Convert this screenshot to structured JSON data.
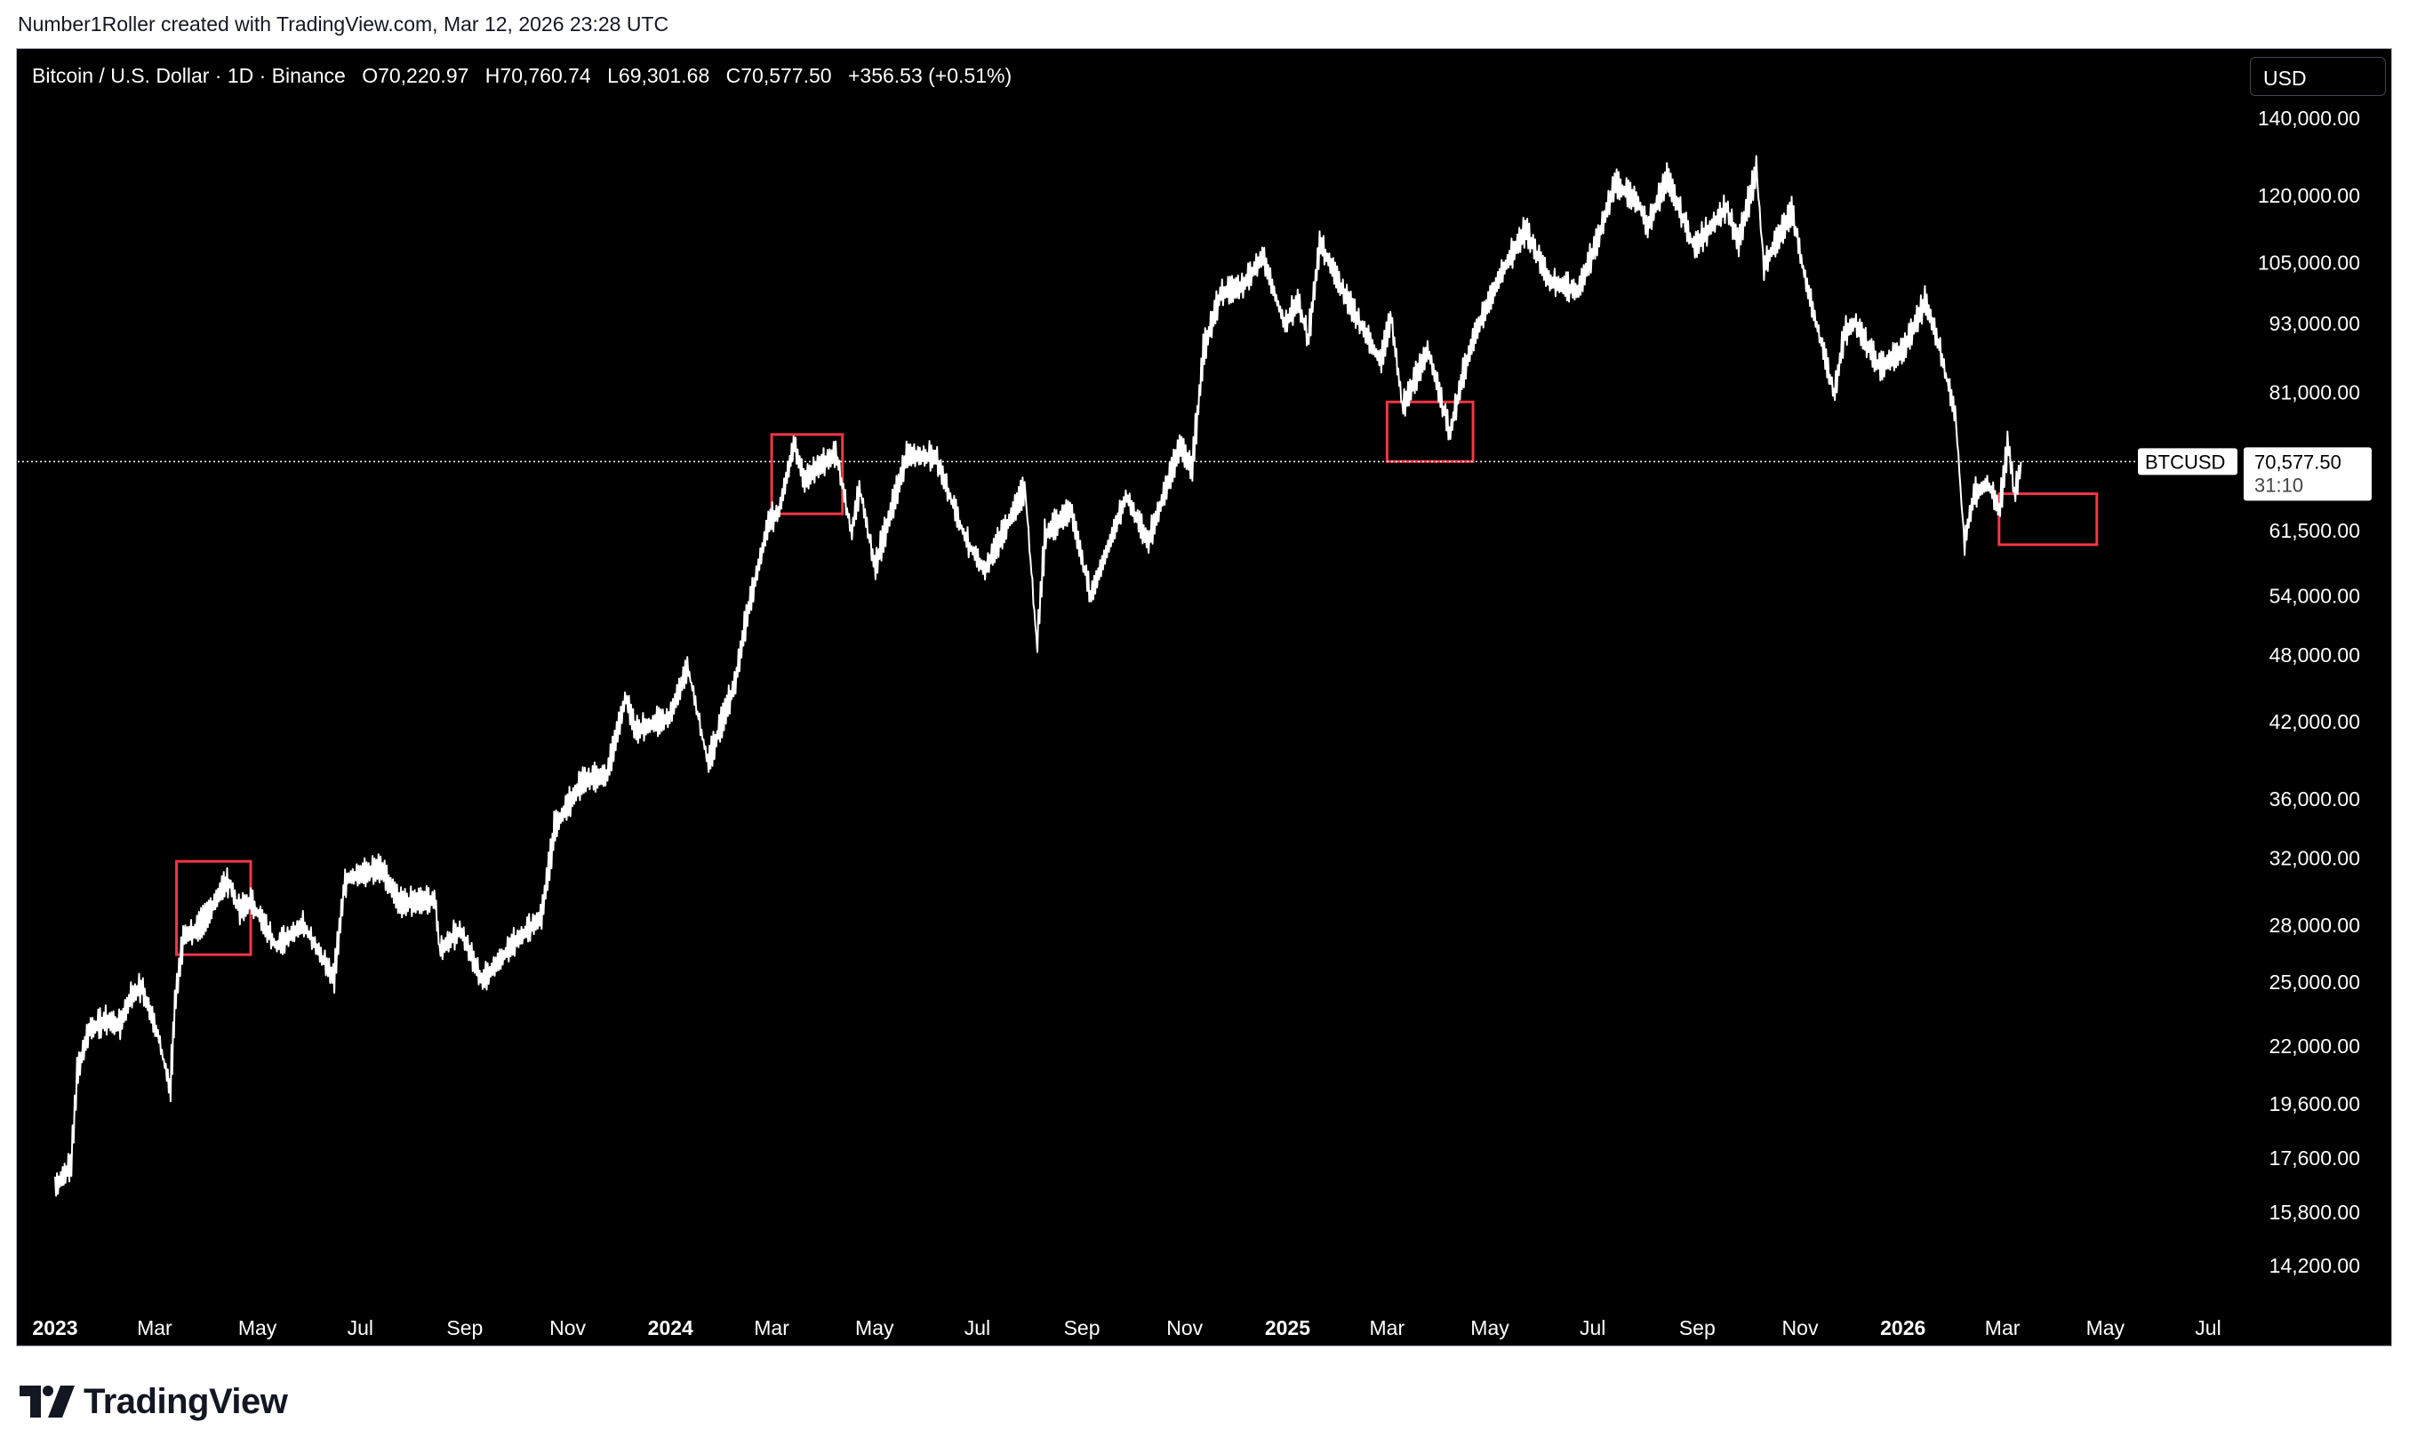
{
  "header": {
    "credit": "Number1Roller created with TradingView.com, Mar 12, 2026 23:28 UTC"
  },
  "legend": {
    "symbol": "Bitcoin / U.S. Dollar · 1D · Binance",
    "open": "O70,220.97",
    "high": "H70,760.74",
    "low": "L69,301.68",
    "close": "C70,577.50",
    "change": "+356.53 (+0.51%)"
  },
  "currency_button": "USD",
  "price_tag": {
    "ticker": "BTCUSD",
    "price": "70,577.50",
    "countdown": "31:10"
  },
  "brand": {
    "name": "TradingView"
  },
  "colors": {
    "background": "#000000",
    "price_line": "#ffffff",
    "highlight_box": "#f23645",
    "axis_text": "#ffffff"
  },
  "chart_data": {
    "type": "line",
    "title": "Bitcoin / U.S. Dollar · 1D · Binance",
    "scale": "log",
    "grid": false,
    "ylim": [
      12500,
      150000
    ],
    "xlim": [
      "2023-01-01",
      "2026-08-01"
    ],
    "y_ticks": [
      {
        "value": 140000,
        "label": "140,000.00"
      },
      {
        "value": 120000,
        "label": "120,000.00"
      },
      {
        "value": 105000,
        "label": "105,000.00"
      },
      {
        "value": 93000,
        "label": "93,000.00"
      },
      {
        "value": 81000,
        "label": "81,000.00"
      },
      {
        "value": 61500,
        "label": "61,500.00"
      },
      {
        "value": 54000,
        "label": "54,000.00"
      },
      {
        "value": 48000,
        "label": "48,000.00"
      },
      {
        "value": 42000,
        "label": "42,000.00"
      },
      {
        "value": 36000,
        "label": "36,000.00"
      },
      {
        "value": 32000,
        "label": "32,000.00"
      },
      {
        "value": 28000,
        "label": "28,000.00"
      },
      {
        "value": 25000,
        "label": "25,000.00"
      },
      {
        "value": 22000,
        "label": "22,000.00"
      },
      {
        "value": 19600,
        "label": "19,600.00"
      },
      {
        "value": 17600,
        "label": "17,600.00"
      },
      {
        "value": 15800,
        "label": "15,800.00"
      },
      {
        "value": 14200,
        "label": "14,200.00"
      }
    ],
    "x_ticks": [
      {
        "date": "2023-01-01",
        "label": "2023",
        "bold": true
      },
      {
        "date": "2023-03-01",
        "label": "Mar",
        "bold": false
      },
      {
        "date": "2023-05-01",
        "label": "May",
        "bold": false
      },
      {
        "date": "2023-07-01",
        "label": "Jul",
        "bold": false
      },
      {
        "date": "2023-09-01",
        "label": "Sep",
        "bold": false
      },
      {
        "date": "2023-11-01",
        "label": "Nov",
        "bold": false
      },
      {
        "date": "2024-01-01",
        "label": "2024",
        "bold": true
      },
      {
        "date": "2024-03-01",
        "label": "Mar",
        "bold": false
      },
      {
        "date": "2024-05-01",
        "label": "May",
        "bold": false
      },
      {
        "date": "2024-07-01",
        "label": "Jul",
        "bold": false
      },
      {
        "date": "2024-09-01",
        "label": "Sep",
        "bold": false
      },
      {
        "date": "2024-11-01",
        "label": "Nov",
        "bold": false
      },
      {
        "date": "2025-01-01",
        "label": "2025",
        "bold": true
      },
      {
        "date": "2025-03-01",
        "label": "Mar",
        "bold": false
      },
      {
        "date": "2025-05-01",
        "label": "May",
        "bold": false
      },
      {
        "date": "2025-07-01",
        "label": "Jul",
        "bold": false
      },
      {
        "date": "2025-09-01",
        "label": "Sep",
        "bold": false
      },
      {
        "date": "2025-11-01",
        "label": "Nov",
        "bold": false
      },
      {
        "date": "2026-01-01",
        "label": "2026",
        "bold": true
      },
      {
        "date": "2026-03-01",
        "label": "Mar",
        "bold": false
      },
      {
        "date": "2026-05-01",
        "label": "May",
        "bold": false
      },
      {
        "date": "2026-07-01",
        "label": "Jul",
        "bold": false
      }
    ],
    "series": [
      {
        "points": [
          [
            "2023-01-01",
            16600
          ],
          [
            "2023-01-10",
            17300
          ],
          [
            "2023-01-14",
            20900
          ],
          [
            "2023-01-21",
            22700
          ],
          [
            "2023-01-31",
            23100
          ],
          [
            "2023-02-08",
            22900
          ],
          [
            "2023-02-15",
            24300
          ],
          [
            "2023-02-21",
            24700
          ],
          [
            "2023-03-03",
            22400
          ],
          [
            "2023-03-10",
            20100
          ],
          [
            "2023-03-13",
            24100
          ],
          [
            "2023-03-18",
            27400
          ],
          [
            "2023-03-25",
            27600
          ],
          [
            "2023-04-01",
            28500
          ],
          [
            "2023-04-11",
            30300
          ],
          [
            "2023-04-14",
            30400
          ],
          [
            "2023-04-20",
            28800
          ],
          [
            "2023-04-27",
            29300
          ],
          [
            "2023-05-12",
            26800
          ],
          [
            "2023-05-28",
            28000
          ],
          [
            "2023-06-10",
            25900
          ],
          [
            "2023-06-15",
            25100
          ],
          [
            "2023-06-21",
            30000
          ],
          [
            "2023-06-23",
            30700
          ],
          [
            "2023-07-13",
            31300
          ],
          [
            "2023-07-24",
            29200
          ],
          [
            "2023-08-14",
            29400
          ],
          [
            "2023-08-17",
            26600
          ],
          [
            "2023-08-29",
            27700
          ],
          [
            "2023-09-11",
            25000
          ],
          [
            "2023-09-30",
            27000
          ],
          [
            "2023-10-16",
            28400
          ],
          [
            "2023-10-23",
            33000
          ],
          [
            "2023-10-24",
            34000
          ],
          [
            "2023-11-10",
            37300
          ],
          [
            "2023-11-24",
            37700
          ],
          [
            "2023-12-05",
            44000
          ],
          [
            "2023-12-11",
            41200
          ],
          [
            "2023-12-31",
            42300
          ],
          [
            "2024-01-11",
            46800
          ],
          [
            "2024-01-23",
            38600
          ],
          [
            "2024-02-08",
            45300
          ],
          [
            "2024-02-15",
            51800
          ],
          [
            "2024-02-28",
            62500
          ],
          [
            "2024-03-05",
            63800
          ],
          [
            "2024-03-14",
            73000
          ],
          [
            "2024-03-20",
            67800
          ],
          [
            "2024-03-27",
            69500
          ],
          [
            "2024-04-08",
            71600
          ],
          [
            "2024-04-17",
            61200
          ],
          [
            "2024-04-22",
            66800
          ],
          [
            "2024-05-01",
            57000
          ],
          [
            "2024-05-20",
            71400
          ],
          [
            "2024-06-06",
            71100
          ],
          [
            "2024-06-24",
            60300
          ],
          [
            "2024-07-05",
            56700
          ],
          [
            "2024-07-29",
            66800
          ],
          [
            "2024-08-05",
            49000
          ],
          [
            "2024-08-10",
            60900
          ],
          [
            "2024-08-25",
            64000
          ],
          [
            "2024-09-06",
            53900
          ],
          [
            "2024-09-27",
            65800
          ],
          [
            "2024-10-10",
            60000
          ],
          [
            "2024-10-29",
            72700
          ],
          [
            "2024-11-05",
            69400
          ],
          [
            "2024-11-12",
            88000
          ],
          [
            "2024-11-22",
            98500
          ],
          [
            "2024-12-05",
            100000
          ],
          [
            "2024-12-17",
            106100
          ],
          [
            "2024-12-30",
            92600
          ],
          [
            "2025-01-07",
            97000
          ],
          [
            "2025-01-13",
            90000
          ],
          [
            "2025-01-20",
            109000
          ],
          [
            "2025-02-04",
            98000
          ],
          [
            "2025-02-25",
            86000
          ],
          [
            "2025-03-03",
            94000
          ],
          [
            "2025-03-10",
            78500
          ],
          [
            "2025-03-25",
            88000
          ],
          [
            "2025-04-07",
            74600
          ],
          [
            "2025-04-15",
            84000
          ],
          [
            "2025-04-22",
            91000
          ],
          [
            "2025-05-08",
            103000
          ],
          [
            "2025-05-22",
            111800
          ],
          [
            "2025-06-05",
            101000
          ],
          [
            "2025-06-22",
            99000
          ],
          [
            "2025-07-03",
            109000
          ],
          [
            "2025-07-14",
            122800
          ],
          [
            "2025-07-28",
            118000
          ],
          [
            "2025-08-02",
            112500
          ],
          [
            "2025-08-14",
            124000
          ],
          [
            "2025-08-30",
            108000
          ],
          [
            "2025-09-18",
            117000
          ],
          [
            "2025-09-25",
            109000
          ],
          [
            "2025-10-06",
            126000
          ],
          [
            "2025-10-10",
            104000
          ],
          [
            "2025-10-27",
            116000
          ],
          [
            "2025-11-04",
            101000
          ],
          [
            "2025-11-21",
            80600
          ],
          [
            "2025-11-27",
            91000
          ],
          [
            "2025-12-03",
            93000
          ],
          [
            "2025-12-18",
            85000
          ],
          [
            "2026-01-01",
            88000
          ],
          [
            "2026-01-14",
            97000
          ],
          [
            "2026-01-22",
            89000
          ],
          [
            "2026-02-01",
            77000
          ],
          [
            "2026-02-06",
            60000
          ],
          [
            "2026-02-12",
            66000
          ],
          [
            "2026-02-20",
            67500
          ],
          [
            "2026-02-27",
            64000
          ],
          [
            "2026-03-04",
            73000
          ],
          [
            "2026-03-08",
            66000
          ],
          [
            "2026-03-12",
            70577.5
          ]
        ]
      }
    ],
    "current_price": 70577.5,
    "highlight_boxes": [
      {
        "start": "2023-03-14",
        "end": "2023-04-27",
        "high": 31800,
        "low": 26400
      },
      {
        "start": "2024-03-01",
        "end": "2024-04-12",
        "high": 74500,
        "low": 63600
      },
      {
        "start": "2025-03-01",
        "end": "2025-04-21",
        "high": 79500,
        "low": 70600
      },
      {
        "start": "2026-02-27",
        "end": "2026-04-26",
        "high": 66200,
        "low": 59800
      }
    ]
  }
}
